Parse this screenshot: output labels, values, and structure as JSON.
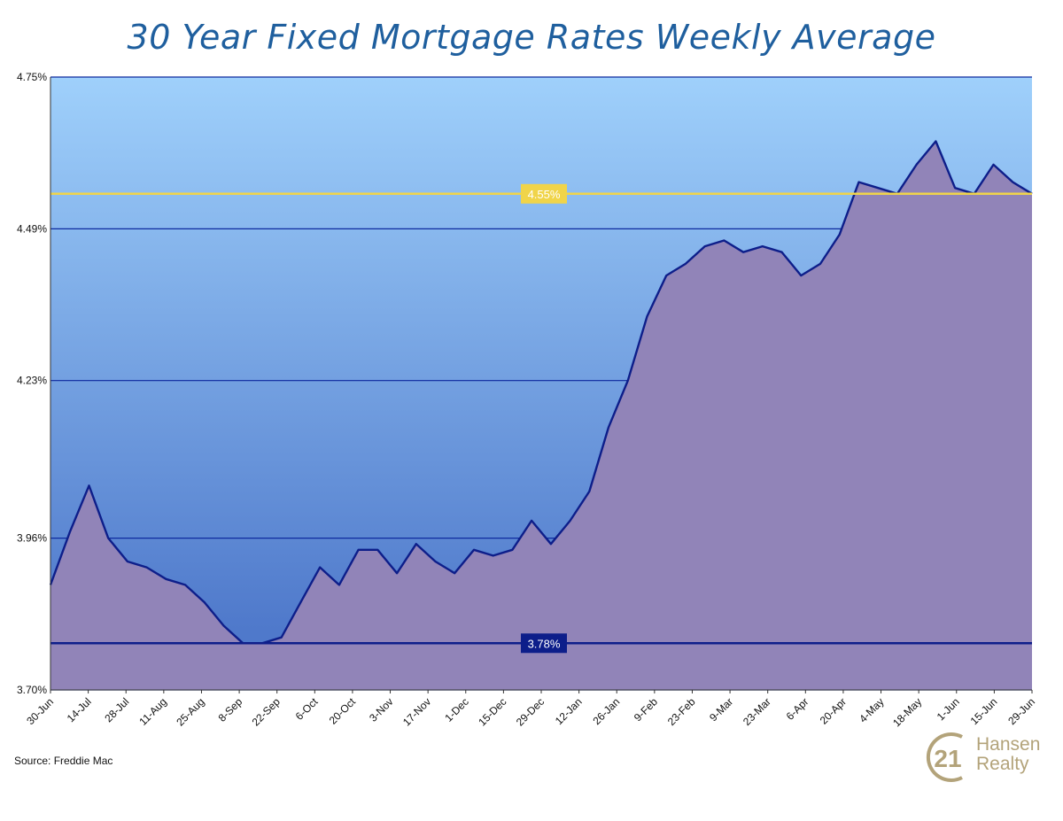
{
  "chart_data": {
    "type": "area",
    "title": "30 Year Fixed Mortgage Rates Weekly Average",
    "xlabel": "",
    "ylabel": "",
    "ylim": [
      3.7,
      4.75
    ],
    "yticks": [
      "4.75%",
      "4.49%",
      "4.23%",
      "3.96%",
      "3.70%"
    ],
    "ytick_values": [
      4.75,
      4.49,
      4.23,
      3.96,
      3.7
    ],
    "xtick_labels": [
      "30-Jun",
      "14-Jul",
      "28-Jul",
      "11-Aug",
      "25-Aug",
      "8-Sep",
      "22-Sep",
      "6-Oct",
      "20-Oct",
      "3-Nov",
      "17-Nov",
      "1-Dec",
      "15-Dec",
      "29-Dec",
      "12-Jan",
      "26-Jan",
      "9-Feb",
      "23-Feb",
      "9-Mar",
      "23-Mar",
      "6-Apr",
      "20-Apr",
      "4-May",
      "18-May",
      "1-Jun",
      "15-Jun",
      "29-Jun"
    ],
    "grid": true,
    "legend": "none",
    "series": [
      {
        "values": [
          3.88,
          3.97,
          4.05,
          3.96,
          3.92,
          3.91,
          3.89,
          3.88,
          3.85,
          3.81,
          3.78,
          3.78,
          3.79,
          3.85,
          3.91,
          3.88,
          3.94,
          3.94,
          3.9,
          3.95,
          3.92,
          3.9,
          3.94,
          3.93,
          3.94,
          3.99,
          3.95,
          3.99,
          4.04,
          4.15,
          4.23,
          4.34,
          4.41,
          4.43,
          4.46,
          4.47,
          4.45,
          4.46,
          4.45,
          4.41,
          4.43,
          4.48,
          4.57,
          4.56,
          4.55,
          4.6,
          4.64,
          4.56,
          4.55,
          4.6,
          4.57,
          4.55
        ]
      }
    ],
    "reference_lines": [
      {
        "value": 4.55,
        "label": "4.55%",
        "color": "#f0d44a"
      },
      {
        "value": 3.78,
        "label": "3.78%",
        "color": "#0d1e8a"
      }
    ],
    "colors": {
      "title": "#1f5f9e",
      "bg_top": "#9fd0fb",
      "bg_bottom": "#4f79cb",
      "area_fill": "#9184b8",
      "line": "#0d1e8a",
      "grid": "#0d2a9e"
    }
  },
  "source": "Source: Freddie Mac",
  "logo": {
    "mark": "21",
    "line1": "Hansen",
    "line2": "Realty",
    "color": "#b3a37a"
  }
}
